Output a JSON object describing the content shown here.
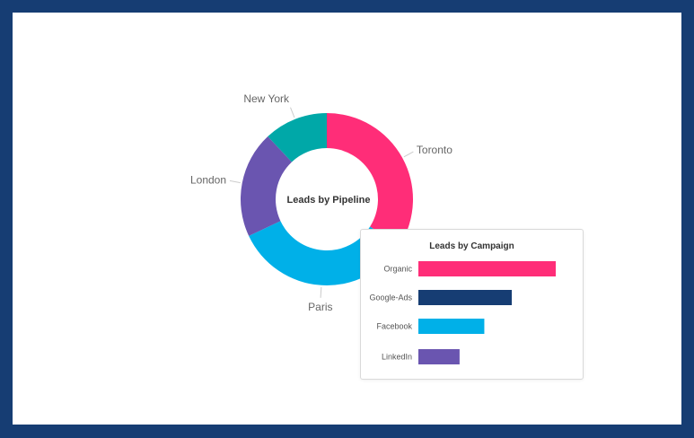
{
  "chart_data": [
    {
      "type": "pie",
      "subtype": "donut",
      "title": "Leads by Pipeline",
      "categories": [
        "Toronto",
        "Paris",
        "London",
        "New York"
      ],
      "values": [
        34,
        34,
        20,
        12
      ],
      "colors": [
        "#ff2d78",
        "#00b0e8",
        "#6a55b0",
        "#00a8a8"
      ]
    },
    {
      "type": "bar",
      "orientation": "horizontal",
      "title": "Leads by Campaign",
      "categories": [
        "Organic",
        "Google-Ads",
        "Facebook",
        "LinkedIn"
      ],
      "values": [
        100,
        68,
        48,
        30
      ],
      "colors": [
        "#ff2d78",
        "#163d73",
        "#00b0e8",
        "#6a55b0"
      ]
    }
  ]
}
